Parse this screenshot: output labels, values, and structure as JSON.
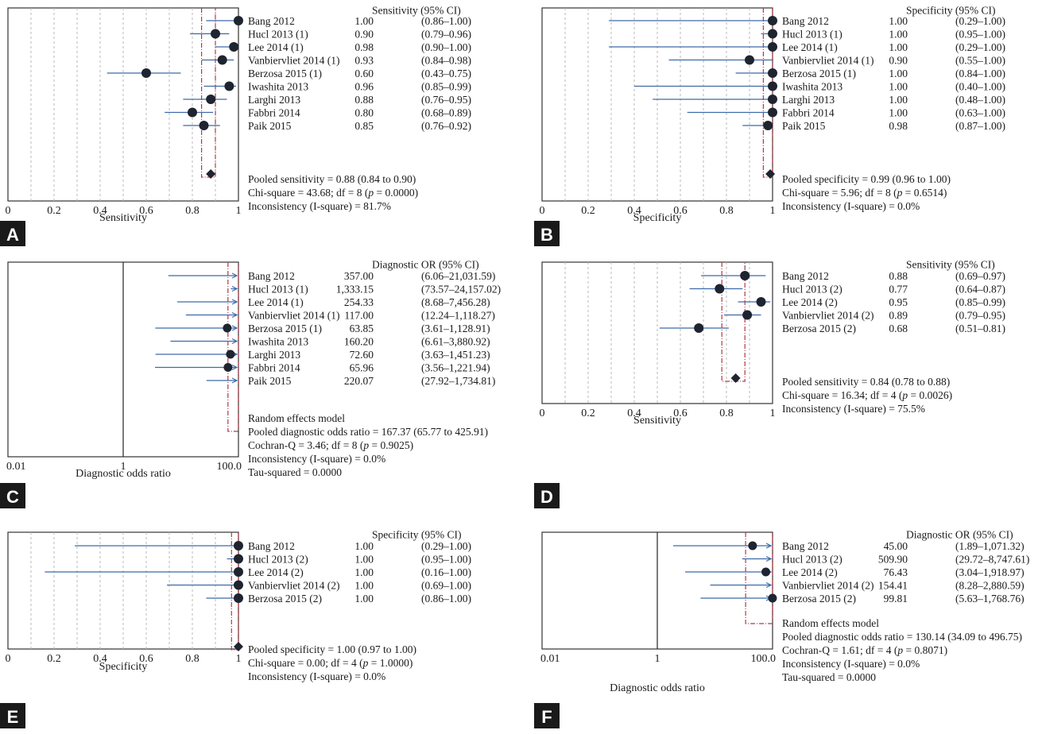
{
  "chart_data": [
    {
      "panel": "A",
      "type": "forest",
      "measure": "sensitivity",
      "header": "Sensitivity (95% CI)",
      "xlabel": "Sensitivity",
      "xlim": [
        0,
        1
      ],
      "xticks": [
        "0",
        "0.2",
        "0.4",
        "0.6",
        "0.8",
        "1"
      ],
      "studies": [
        {
          "label": "Bang 2012",
          "est": "1.00",
          "ci": "(0.86–1.00)",
          "value": 1.0,
          "lo": 0.86,
          "hi": 1.0
        },
        {
          "label": "Hucl 2013 (1)",
          "est": "0.90",
          "ci": "(0.79–0.96)",
          "value": 0.9,
          "lo": 0.79,
          "hi": 0.96
        },
        {
          "label": "Lee 2014 (1)",
          "est": "0.98",
          "ci": "(0.90–1.00)",
          "value": 0.98,
          "lo": 0.9,
          "hi": 1.0
        },
        {
          "label": "Vanbiervliet 2014 (1)",
          "est": "0.93",
          "ci": "(0.84–0.98)",
          "value": 0.93,
          "lo": 0.84,
          "hi": 0.98
        },
        {
          "label": "Berzosa 2015 (1)",
          "est": "0.60",
          "ci": "(0.43–0.75)",
          "value": 0.6,
          "lo": 0.43,
          "hi": 0.75
        },
        {
          "label": "Iwashita 2013",
          "est": "0.96",
          "ci": "(0.85–0.99)",
          "value": 0.96,
          "lo": 0.85,
          "hi": 0.99
        },
        {
          "label": "Larghi 2013",
          "est": "0.88",
          "ci": "(0.76–0.95)",
          "value": 0.88,
          "lo": 0.76,
          "hi": 0.95
        },
        {
          "label": "Fabbri 2014",
          "est": "0.80",
          "ci": "(0.68–0.89)",
          "value": 0.8,
          "lo": 0.68,
          "hi": 0.89
        },
        {
          "label": "Paik 2015",
          "est": "0.85",
          "ci": "(0.76–0.92)",
          "value": 0.85,
          "lo": 0.76,
          "hi": 0.92
        }
      ],
      "pooled": {
        "value": 0.88,
        "lo": 0.84,
        "hi": 0.9
      },
      "summary": [
        [
          {
            "t": "Pooled sensitivity = 0.88 (0.84 to 0.90)"
          }
        ],
        [
          {
            "t": "Chi-square = 43.68; df = 8 ("
          },
          {
            "t": "p",
            "i": true
          },
          {
            "t": " = 0.0000)"
          }
        ],
        [
          {
            "t": "Inconsistency (I-square) = 81.7%"
          }
        ]
      ]
    },
    {
      "panel": "B",
      "type": "forest",
      "measure": "specificity",
      "header": "Specificity (95% CI)",
      "xlabel": "Specificity",
      "xlim": [
        0,
        1
      ],
      "xticks": [
        "0",
        "0.2",
        "0.4",
        "0.6",
        "0.8",
        "1"
      ],
      "studies": [
        {
          "label": "Bang 2012",
          "est": "1.00",
          "ci": "(0.29–1.00)",
          "value": 1.0,
          "lo": 0.29,
          "hi": 1.0
        },
        {
          "label": "Hucl 2013 (1)",
          "est": "1.00",
          "ci": "(0.95–1.00)",
          "value": 1.0,
          "lo": 0.95,
          "hi": 1.0
        },
        {
          "label": "Lee 2014 (1)",
          "est": "1.00",
          "ci": "(0.29–1.00)",
          "value": 1.0,
          "lo": 0.29,
          "hi": 1.0
        },
        {
          "label": "Vanbiervliet 2014 (1)",
          "est": "0.90",
          "ci": "(0.55–1.00)",
          "value": 0.9,
          "lo": 0.55,
          "hi": 1.0
        },
        {
          "label": "Berzosa 2015 (1)",
          "est": "1.00",
          "ci": "(0.84–1.00)",
          "value": 1.0,
          "lo": 0.84,
          "hi": 1.0
        },
        {
          "label": "Iwashita 2013",
          "est": "1.00",
          "ci": "(0.40–1.00)",
          "value": 1.0,
          "lo": 0.4,
          "hi": 1.0
        },
        {
          "label": "Larghi 2013",
          "est": "1.00",
          "ci": "(0.48–1.00)",
          "value": 1.0,
          "lo": 0.48,
          "hi": 1.0
        },
        {
          "label": "Fabbri 2014",
          "est": "1.00",
          "ci": "(0.63–1.00)",
          "value": 1.0,
          "lo": 0.63,
          "hi": 1.0
        },
        {
          "label": "Paik 2015",
          "est": "0.98",
          "ci": "(0.87–1.00)",
          "value": 0.98,
          "lo": 0.87,
          "hi": 1.0
        }
      ],
      "pooled": {
        "value": 0.99,
        "lo": 0.96,
        "hi": 1.0
      },
      "summary": [
        [
          {
            "t": "Pooled specificity = 0.99 (0.96 to 1.00)"
          }
        ],
        [
          {
            "t": "Chi-square = 5.96; df = 8 ("
          },
          {
            "t": "p",
            "i": true
          },
          {
            "t": " = 0.6514)"
          }
        ],
        [
          {
            "t": "Inconsistency (I-square) = 0.0%"
          }
        ]
      ]
    },
    {
      "panel": "C",
      "type": "forest",
      "measure": "dor",
      "header": "Diagnostic OR (95% CI)",
      "xlabel": "Diagnostic odds ratio",
      "xscale": "log",
      "xlim": [
        0.01,
        100
      ],
      "xticks": [
        "0.01",
        "1",
        "100.0"
      ],
      "studies": [
        {
          "label": "Bang 2012",
          "est": "357.00",
          "ci": "(6.06–21,031.59)",
          "value": 357.0,
          "lo": 6.06,
          "hi": 21031.59
        },
        {
          "label": "Hucl 2013 (1)",
          "est": "1,333.15",
          "ci": "(73.57–24,157.02)",
          "value": 1333.15,
          "lo": 73.57,
          "hi": 24157.02
        },
        {
          "label": "Lee 2014 (1)",
          "est": "254.33",
          "ci": "(8.68–7,456.28)",
          "value": 254.33,
          "lo": 8.68,
          "hi": 7456.28
        },
        {
          "label": "Vanbiervliet 2014 (1)",
          "est": "117.00",
          "ci": "(12.24–1,118.27)",
          "value": 117.0,
          "lo": 12.24,
          "hi": 1118.27
        },
        {
          "label": "Berzosa 2015 (1)",
          "est": "63.85",
          "ci": "(3.61–1,128.91)",
          "value": 63.85,
          "lo": 3.61,
          "hi": 1128.91
        },
        {
          "label": "Iwashita 2013",
          "est": "160.20",
          "ci": "(6.61–3,880.92)",
          "value": 160.2,
          "lo": 6.61,
          "hi": 3880.92
        },
        {
          "label": "Larghi 2013",
          "est": "72.60",
          "ci": "(3.63–1,451.23)",
          "value": 72.6,
          "lo": 3.63,
          "hi": 1451.23
        },
        {
          "label": "Fabbri 2014",
          "est": "65.96",
          "ci": "(3.56–1,221.94)",
          "value": 65.96,
          "lo": 3.56,
          "hi": 1221.94
        },
        {
          "label": "Paik 2015",
          "est": "220.07",
          "ci": "(27.92–1,734.81)",
          "value": 220.07,
          "lo": 27.92,
          "hi": 1734.81
        }
      ],
      "pooled": {
        "value": 167.37,
        "lo": 65.77,
        "hi": 425.91
      },
      "summary": [
        [
          {
            "t": "Random effects model"
          }
        ],
        [
          {
            "t": "Pooled diagnostic odds ratio = 167.37 (65.77 to 425.91)"
          }
        ],
        [
          {
            "t": "Cochran-Q = 3.46; df = 8 ("
          },
          {
            "t": "p",
            "i": true
          },
          {
            "t": " = 0.9025)"
          }
        ],
        [
          {
            "t": "Inconsistency (I-square) = 0.0%"
          }
        ],
        [
          {
            "t": "Tau-squared = 0.0000"
          }
        ]
      ]
    },
    {
      "panel": "D",
      "type": "forest",
      "measure": "sensitivity",
      "header": "Sensitivity (95% CI)",
      "xlabel": "Sensitivity",
      "xlim": [
        0,
        1
      ],
      "xticks": [
        "0",
        "0.2",
        "0.4",
        "0.6",
        "0.8",
        "1"
      ],
      "studies": [
        {
          "label": "Bang 2012",
          "est": "0.88",
          "ci": "(0.69–0.97)",
          "value": 0.88,
          "lo": 0.69,
          "hi": 0.97
        },
        {
          "label": "Hucl 2013 (2)",
          "est": "0.77",
          "ci": "(0.64–0.87)",
          "value": 0.77,
          "lo": 0.64,
          "hi": 0.87
        },
        {
          "label": "Lee 2014 (2)",
          "est": "0.95",
          "ci": "(0.85–0.99)",
          "value": 0.95,
          "lo": 0.85,
          "hi": 0.99
        },
        {
          "label": "Vanbiervliet 2014 (2)",
          "est": "0.89",
          "ci": "(0.79–0.95)",
          "value": 0.89,
          "lo": 0.79,
          "hi": 0.95
        },
        {
          "label": "Berzosa 2015 (2)",
          "est": "0.68",
          "ci": "(0.51–0.81)",
          "value": 0.68,
          "lo": 0.51,
          "hi": 0.81
        }
      ],
      "pooled": {
        "value": 0.84,
        "lo": 0.78,
        "hi": 0.88
      },
      "summary": [
        [
          {
            "t": "Pooled sensitivity = 0.84 (0.78 to 0.88)"
          }
        ],
        [
          {
            "t": "Chi-square = 16.34; df = 4 ("
          },
          {
            "t": "p",
            "i": true
          },
          {
            "t": " = 0.0026)"
          }
        ],
        [
          {
            "t": "Inconsistency (I-square) = 75.5%"
          }
        ]
      ]
    },
    {
      "panel": "E",
      "type": "forest",
      "measure": "specificity",
      "header": "Specificity (95% CI)",
      "xlabel": "Specificity",
      "xlim": [
        0,
        1
      ],
      "xticks": [
        "0",
        "0.2",
        "0.4",
        "0.6",
        "0.8",
        "1"
      ],
      "studies": [
        {
          "label": "Bang 2012",
          "est": "1.00",
          "ci": "(0.29–1.00)",
          "value": 1.0,
          "lo": 0.29,
          "hi": 1.0
        },
        {
          "label": "Hucl 2013 (2)",
          "est": "1.00",
          "ci": "(0.95–1.00)",
          "value": 1.0,
          "lo": 0.95,
          "hi": 1.0
        },
        {
          "label": "Lee 2014 (2)",
          "est": "1.00",
          "ci": "(0.16–1.00)",
          "value": 1.0,
          "lo": 0.16,
          "hi": 1.0
        },
        {
          "label": "Vanbiervliet 2014 (2)",
          "est": "1.00",
          "ci": "(0.69–1.00)",
          "value": 1.0,
          "lo": 0.69,
          "hi": 1.0
        },
        {
          "label": "Berzosa 2015 (2)",
          "est": "1.00",
          "ci": "(0.86–1.00)",
          "value": 1.0,
          "lo": 0.86,
          "hi": 1.0
        }
      ],
      "pooled": {
        "value": 1.0,
        "lo": 0.97,
        "hi": 1.0
      },
      "summary": [
        [
          {
            "t": "Pooled specificity = 1.00 (0.97 to 1.00)"
          }
        ],
        [
          {
            "t": "Chi-square = 0.00; df = 4 ("
          },
          {
            "t": "p",
            "i": true
          },
          {
            "t": " = 1.0000)"
          }
        ],
        [
          {
            "t": "Inconsistency (I-square) = 0.0%"
          }
        ]
      ]
    },
    {
      "panel": "F",
      "type": "forest",
      "measure": "dor",
      "header": "Diagnostic OR (95% CI)",
      "xlabel": "Diagnostic odds ratio",
      "xscale": "log",
      "xlim": [
        0.01,
        100
      ],
      "xticks": [
        "0.01",
        "1",
        "100.0"
      ],
      "studies": [
        {
          "label": "Bang 2012",
          "est": "45.00",
          "ci": "(1.89–1,071.32)",
          "value": 45.0,
          "lo": 1.89,
          "hi": 1071.32
        },
        {
          "label": "Hucl 2013 (2)",
          "est": "509.90",
          "ci": "(29.72–8,747.61)",
          "value": 509.9,
          "lo": 29.72,
          "hi": 8747.61
        },
        {
          "label": "Lee 2014 (2)",
          "est": "76.43",
          "ci": "(3.04–1,918.97)",
          "value": 76.43,
          "lo": 3.04,
          "hi": 1918.97
        },
        {
          "label": "Vanbiervliet 2014 (2)",
          "est": "154.41",
          "ci": "(8.28–2,880.59)",
          "value": 154.41,
          "lo": 8.28,
          "hi": 2880.59
        },
        {
          "label": "Berzosa 2015 (2)",
          "est": "99.81",
          "ci": "(5.63–1,768.76)",
          "value": 99.81,
          "lo": 5.63,
          "hi": 1768.76
        }
      ],
      "pooled": {
        "value": 130.14,
        "lo": 34.09,
        "hi": 496.75
      },
      "summary": [
        [
          {
            "t": "Random effects model"
          }
        ],
        [
          {
            "t": "Pooled diagnostic odds ratio = 130.14 (34.09 to 496.75)"
          }
        ],
        [
          {
            "t": "Cochran-Q = 1.61; df = 4 ("
          },
          {
            "t": "p",
            "i": true
          },
          {
            "t": " = 0.8071)"
          }
        ],
        [
          {
            "t": "Inconsistency (I-square) = 0.0%"
          }
        ],
        [
          {
            "t": "Tau-squared = 0.0000"
          }
        ]
      ]
    }
  ],
  "colors": {
    "ci_line": "#3d6aa8",
    "marker": "#1e2430",
    "pooled_band": "#b43a46",
    "grid": "#b8b8b8",
    "frame": "#333333",
    "panel_label_bg": "#1a1a1a",
    "panel_label_text": "#ffffff"
  }
}
